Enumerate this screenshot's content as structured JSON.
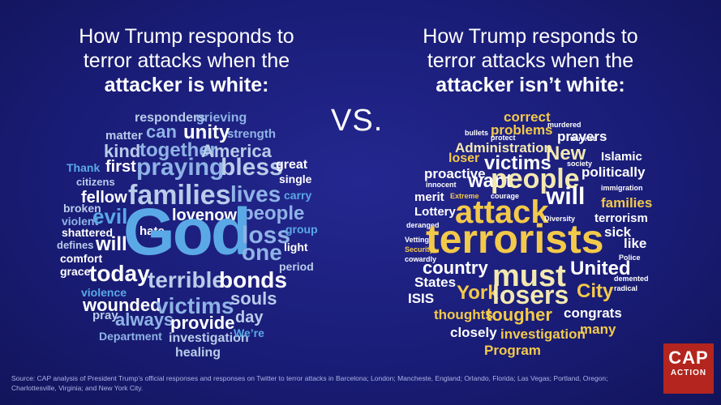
{
  "left_title": {
    "line1": "How Trump responds to",
    "line2": "terror attacks when the",
    "line3": "attacker is white:"
  },
  "right_title": {
    "line1": "How Trump responds to",
    "line2": "terror attacks when the",
    "line3": "attacker isn’t white:"
  },
  "vs_text": "VS.",
  "colors": {
    "background": "#1a1d78",
    "left_cloud_palette": [
      "#ffffff",
      "#b9ccea",
      "#8fb3e6",
      "#5aa9e6",
      "#3f86d6"
    ],
    "right_cloud_palette": [
      "#ffffff",
      "#f3e9b0",
      "#f3c94a",
      "#e8a92d",
      "#f7e17a"
    ],
    "logo": "#b3251e"
  },
  "left_cloud": {
    "words": [
      {
        "text": "responders",
        "size": 16,
        "color": "#b9ccea"
      },
      {
        "text": "grieving",
        "size": 16,
        "color": "#8fb3e6"
      },
      {
        "text": "can",
        "size": 22,
        "color": "#8fb3e6"
      },
      {
        "text": "unity",
        "size": 24,
        "color": "#ffffff"
      },
      {
        "text": "strength",
        "size": 15,
        "color": "#8fb3e6"
      },
      {
        "text": "matter",
        "size": 15,
        "color": "#b9ccea"
      },
      {
        "text": "kind",
        "size": 22,
        "color": "#b9ccea"
      },
      {
        "text": "together",
        "size": 24,
        "color": "#8fb3e6"
      },
      {
        "text": "America",
        "size": 22,
        "color": "#b9ccea"
      },
      {
        "text": "Thank",
        "size": 14,
        "color": "#5aa9e6"
      },
      {
        "text": "first",
        "size": 20,
        "color": "#ffffff"
      },
      {
        "text": "praying",
        "size": 30,
        "color": "#8fb3e6"
      },
      {
        "text": "bless",
        "size": 30,
        "color": "#b9ccea"
      },
      {
        "text": "great",
        "size": 16,
        "color": "#ffffff"
      },
      {
        "text": "citizens",
        "size": 13,
        "color": "#b9ccea"
      },
      {
        "text": "single",
        "size": 14,
        "color": "#ffffff"
      },
      {
        "text": "fellow",
        "size": 20,
        "color": "#ffffff"
      },
      {
        "text": "families",
        "size": 34,
        "color": "#b9ccea"
      },
      {
        "text": "lives",
        "size": 28,
        "color": "#8fb3e6"
      },
      {
        "text": "carry",
        "size": 14,
        "color": "#5aa9e6"
      },
      {
        "text": "broken",
        "size": 14,
        "color": "#b9ccea"
      },
      {
        "text": "love",
        "size": 20,
        "color": "#ffffff"
      },
      {
        "text": "now",
        "size": 20,
        "color": "#ffffff"
      },
      {
        "text": "people",
        "size": 24,
        "color": "#8fb3e6"
      },
      {
        "text": "violent",
        "size": 14,
        "color": "#8fb3e6"
      },
      {
        "text": "evil",
        "size": 26,
        "color": "#5aa9e6"
      },
      {
        "text": "shattered",
        "size": 14,
        "color": "#ffffff"
      },
      {
        "text": "hate",
        "size": 15,
        "color": "#ffffff"
      },
      {
        "text": "God",
        "size": 82,
        "color": "#5aa9e6"
      },
      {
        "text": "loss",
        "size": 30,
        "color": "#8fb3e6"
      },
      {
        "text": "group",
        "size": 14,
        "color": "#5aa9e6"
      },
      {
        "text": "defines",
        "size": 13,
        "color": "#b9ccea"
      },
      {
        "text": "will",
        "size": 24,
        "color": "#ffffff"
      },
      {
        "text": "light",
        "size": 14,
        "color": "#ffffff"
      },
      {
        "text": "comfort",
        "size": 14,
        "color": "#ffffff"
      },
      {
        "text": "one",
        "size": 28,
        "color": "#8fb3e6"
      },
      {
        "text": "grace",
        "size": 14,
        "color": "#ffffff"
      },
      {
        "text": "period",
        "size": 14,
        "color": "#b9ccea"
      },
      {
        "text": "today",
        "size": 28,
        "color": "#ffffff"
      },
      {
        "text": "terrible",
        "size": 28,
        "color": "#b9ccea"
      },
      {
        "text": "bonds",
        "size": 28,
        "color": "#ffffff"
      },
      {
        "text": "violence",
        "size": 14,
        "color": "#5aa9e6"
      },
      {
        "text": "wounded",
        "size": 22,
        "color": "#ffffff"
      },
      {
        "text": "victims",
        "size": 28,
        "color": "#8fb3e6"
      },
      {
        "text": "souls",
        "size": 22,
        "color": "#b9ccea"
      },
      {
        "text": "pray",
        "size": 15,
        "color": "#b9ccea"
      },
      {
        "text": "always",
        "size": 22,
        "color": "#8fb3e6"
      },
      {
        "text": "provide",
        "size": 22,
        "color": "#ffffff"
      },
      {
        "text": "day",
        "size": 20,
        "color": "#b9ccea"
      },
      {
        "text": "Department",
        "size": 14,
        "color": "#8fb3e6"
      },
      {
        "text": "investigation",
        "size": 16,
        "color": "#b9ccea"
      },
      {
        "text": "We’re",
        "size": 14,
        "color": "#5aa9e6"
      },
      {
        "text": "healing",
        "size": 16,
        "color": "#b9ccea"
      }
    ]
  },
  "right_cloud": {
    "words": [
      {
        "text": "correct",
        "size": 17,
        "color": "#f3c94a"
      },
      {
        "text": "problems",
        "size": 17,
        "color": "#f3c94a"
      },
      {
        "text": "murdered",
        "size": 9,
        "color": "#ffffff"
      },
      {
        "text": "prayers",
        "size": 17,
        "color": "#ffffff"
      },
      {
        "text": "bullets",
        "size": 9,
        "color": "#ffffff"
      },
      {
        "text": "protect",
        "size": 9,
        "color": "#ffffff"
      },
      {
        "text": "terrorist",
        "size": 8,
        "color": "#ffffff"
      },
      {
        "text": "Administration",
        "size": 17,
        "color": "#f3e9b0"
      },
      {
        "text": "Islamic",
        "size": 15,
        "color": "#ffffff"
      },
      {
        "text": "loser",
        "size": 16,
        "color": "#f3c94a"
      },
      {
        "text": "New",
        "size": 24,
        "color": "#f3e9b0"
      },
      {
        "text": "victims",
        "size": 24,
        "color": "#ffffff"
      },
      {
        "text": "society",
        "size": 9,
        "color": "#ffffff"
      },
      {
        "text": "proactive",
        "size": 17,
        "color": "#ffffff"
      },
      {
        "text": "politically",
        "size": 17,
        "color": "#ffffff"
      },
      {
        "text": "want",
        "size": 24,
        "color": "#ffffff"
      },
      {
        "text": "people",
        "size": 34,
        "color": "#f3e9b0"
      },
      {
        "text": "innocent",
        "size": 9,
        "color": "#ffffff"
      },
      {
        "text": "immigration",
        "size": 9,
        "color": "#ffffff"
      },
      {
        "text": "merit",
        "size": 15,
        "color": "#ffffff"
      },
      {
        "text": "Extreme",
        "size": 9,
        "color": "#f3c94a"
      },
      {
        "text": "courage",
        "size": 9,
        "color": "#ffffff"
      },
      {
        "text": "will",
        "size": 30,
        "color": "#ffffff"
      },
      {
        "text": "families",
        "size": 17,
        "color": "#f3c94a"
      },
      {
        "text": "Lottery",
        "size": 15,
        "color": "#ffffff"
      },
      {
        "text": "attack",
        "size": 40,
        "color": "#f3c94a"
      },
      {
        "text": "terrorism",
        "size": 15,
        "color": "#ffffff"
      },
      {
        "text": "deranged",
        "size": 9,
        "color": "#ffffff"
      },
      {
        "text": "Diversity",
        "size": 9,
        "color": "#ffffff"
      },
      {
        "text": "terrorists",
        "size": 50,
        "color": "#f3c94a"
      },
      {
        "text": "sick",
        "size": 17,
        "color": "#ffffff"
      },
      {
        "text": "Vetting",
        "size": 9,
        "color": "#ffffff"
      },
      {
        "text": "like",
        "size": 17,
        "color": "#ffffff"
      },
      {
        "text": "Security",
        "size": 9,
        "color": "#f3c94a"
      },
      {
        "text": "cowardly",
        "size": 9,
        "color": "#ffffff"
      },
      {
        "text": "Police",
        "size": 9,
        "color": "#ffffff"
      },
      {
        "text": "country",
        "size": 22,
        "color": "#ffffff"
      },
      {
        "text": "must",
        "size": 38,
        "color": "#f3e9b0"
      },
      {
        "text": "United",
        "size": 24,
        "color": "#ffffff"
      },
      {
        "text": "States",
        "size": 17,
        "color": "#ffffff"
      },
      {
        "text": "demented",
        "size": 9,
        "color": "#ffffff"
      },
      {
        "text": "radical",
        "size": 9,
        "color": "#ffffff"
      },
      {
        "text": "ISIS",
        "size": 17,
        "color": "#ffffff"
      },
      {
        "text": "York",
        "size": 24,
        "color": "#f3c94a"
      },
      {
        "text": "losers",
        "size": 32,
        "color": "#f3e9b0"
      },
      {
        "text": "City",
        "size": 24,
        "color": "#f3c94a"
      },
      {
        "text": "thoughts",
        "size": 17,
        "color": "#f3c94a"
      },
      {
        "text": "tougher",
        "size": 22,
        "color": "#f3c94a"
      },
      {
        "text": "congrats",
        "size": 17,
        "color": "#ffffff"
      },
      {
        "text": "many",
        "size": 17,
        "color": "#f3c94a"
      },
      {
        "text": "closely",
        "size": 17,
        "color": "#ffffff"
      },
      {
        "text": "investigation",
        "size": 17,
        "color": "#f3c94a"
      },
      {
        "text": "Program",
        "size": 17,
        "color": "#f3c94a"
      }
    ]
  },
  "source_text": "Source: CAP analysis of President Trump’s official responses and responses on Twitter to terror attacks in Barcelona; London; Mancheste, England; Orlando, Florida; Las Vegas; Portland, Oregon; Charlottesville, Virginia; and New York City.",
  "logo": {
    "line1": "CAP",
    "line2": "ACTION"
  }
}
